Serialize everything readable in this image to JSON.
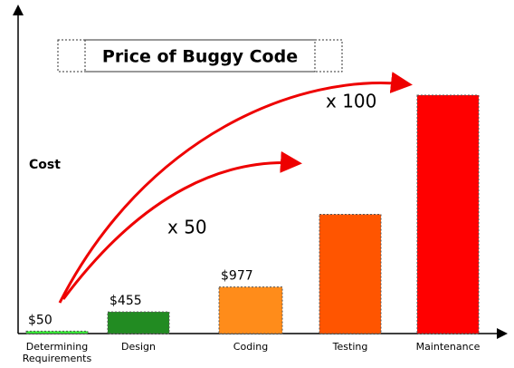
{
  "chart_data": {
    "type": "bar",
    "title": "Price of Buggy Code",
    "y_label": "Cost",
    "categories": [
      "Determining Requirements",
      "Design",
      "Coding",
      "Testing",
      "Maintenance"
    ],
    "values": [
      50,
      455,
      977,
      2500,
      5000
    ],
    "value_labels": [
      "$50",
      "$455",
      "$977",
      null,
      null
    ],
    "colors": [
      "#33ee33",
      "#228b22",
      "#ff8c1a",
      "#ff5500",
      "#ff0000"
    ],
    "ylim": [
      0,
      5000
    ],
    "annotations": [
      "x 50",
      "x 100"
    ]
  }
}
